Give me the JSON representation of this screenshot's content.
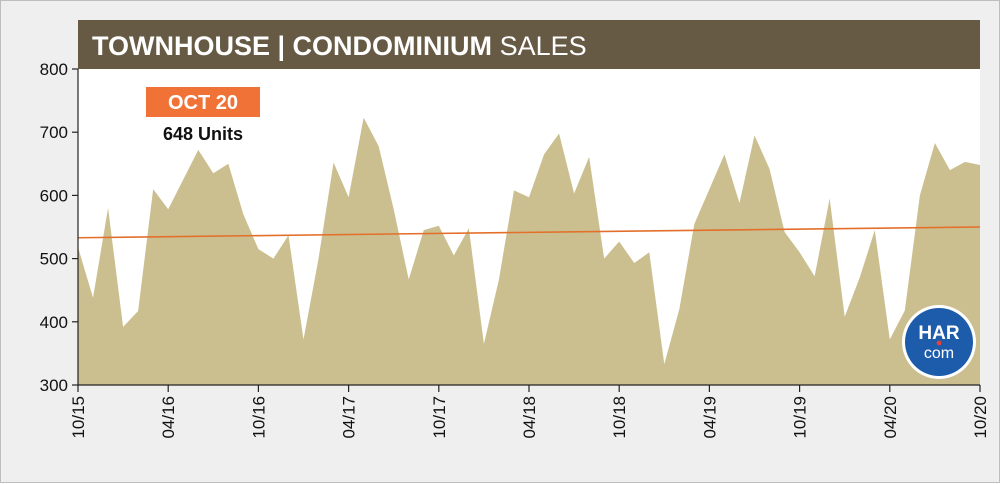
{
  "chart_data": {
    "type": "area",
    "title_bold": "TOWNHOUSE | CONDOMINIUM",
    "title_light": "SALES",
    "xlabel": "",
    "ylabel": "",
    "ylim": [
      300,
      800
    ],
    "yticks": [
      300,
      400,
      500,
      600,
      700,
      800
    ],
    "xtick_labels": [
      "10/15",
      "04/16",
      "10/16",
      "04/17",
      "10/17",
      "04/18",
      "10/18",
      "04/19",
      "10/19",
      "04/20",
      "10/20"
    ],
    "x": [
      "10/15",
      "11/15",
      "12/15",
      "01/16",
      "02/16",
      "03/16",
      "04/16",
      "05/16",
      "06/16",
      "07/16",
      "08/16",
      "09/16",
      "10/16",
      "11/16",
      "12/16",
      "01/17",
      "02/17",
      "03/17",
      "04/17",
      "05/17",
      "06/17",
      "07/17",
      "08/17",
      "09/17",
      "10/17",
      "11/17",
      "12/17",
      "01/18",
      "02/18",
      "03/18",
      "04/18",
      "05/18",
      "06/18",
      "07/18",
      "08/18",
      "09/18",
      "10/18",
      "11/18",
      "12/18",
      "01/19",
      "02/19",
      "03/19",
      "04/19",
      "05/19",
      "06/19",
      "07/19",
      "08/19",
      "09/19",
      "10/19",
      "11/19",
      "12/19",
      "01/20",
      "02/20",
      "03/20",
      "04/20",
      "05/20",
      "06/20",
      "07/20",
      "08/20",
      "09/20",
      "10/20"
    ],
    "series": [
      {
        "values": [
          518,
          438,
          580,
          392,
          417,
          610,
          578,
          625,
          672,
          635,
          650,
          570,
          515,
          500,
          537,
          372,
          500,
          652,
          597,
          723,
          678,
          578,
          467,
          545,
          552,
          505,
          548,
          365,
          467,
          608,
          597,
          665,
          698,
          603,
          661,
          500,
          527,
          493,
          510,
          333,
          420,
          555,
          610,
          665,
          588,
          695,
          642,
          542,
          510,
          472,
          595,
          408,
          470,
          545,
          372,
          418,
          600,
          683,
          640,
          653,
          648
        ]
      }
    ],
    "trendline": {
      "start": 533,
      "end": 550
    },
    "grid": false,
    "fill_color": "#cbbf90",
    "trend_color": "#e36f2b",
    "header_color": "#675a45",
    "callout": {
      "date": "OCT 20",
      "value": "648 Units",
      "color": "#f07236"
    },
    "logo": {
      "top": "HAR",
      "bottom": "com",
      "color": "#1c5cab"
    }
  }
}
